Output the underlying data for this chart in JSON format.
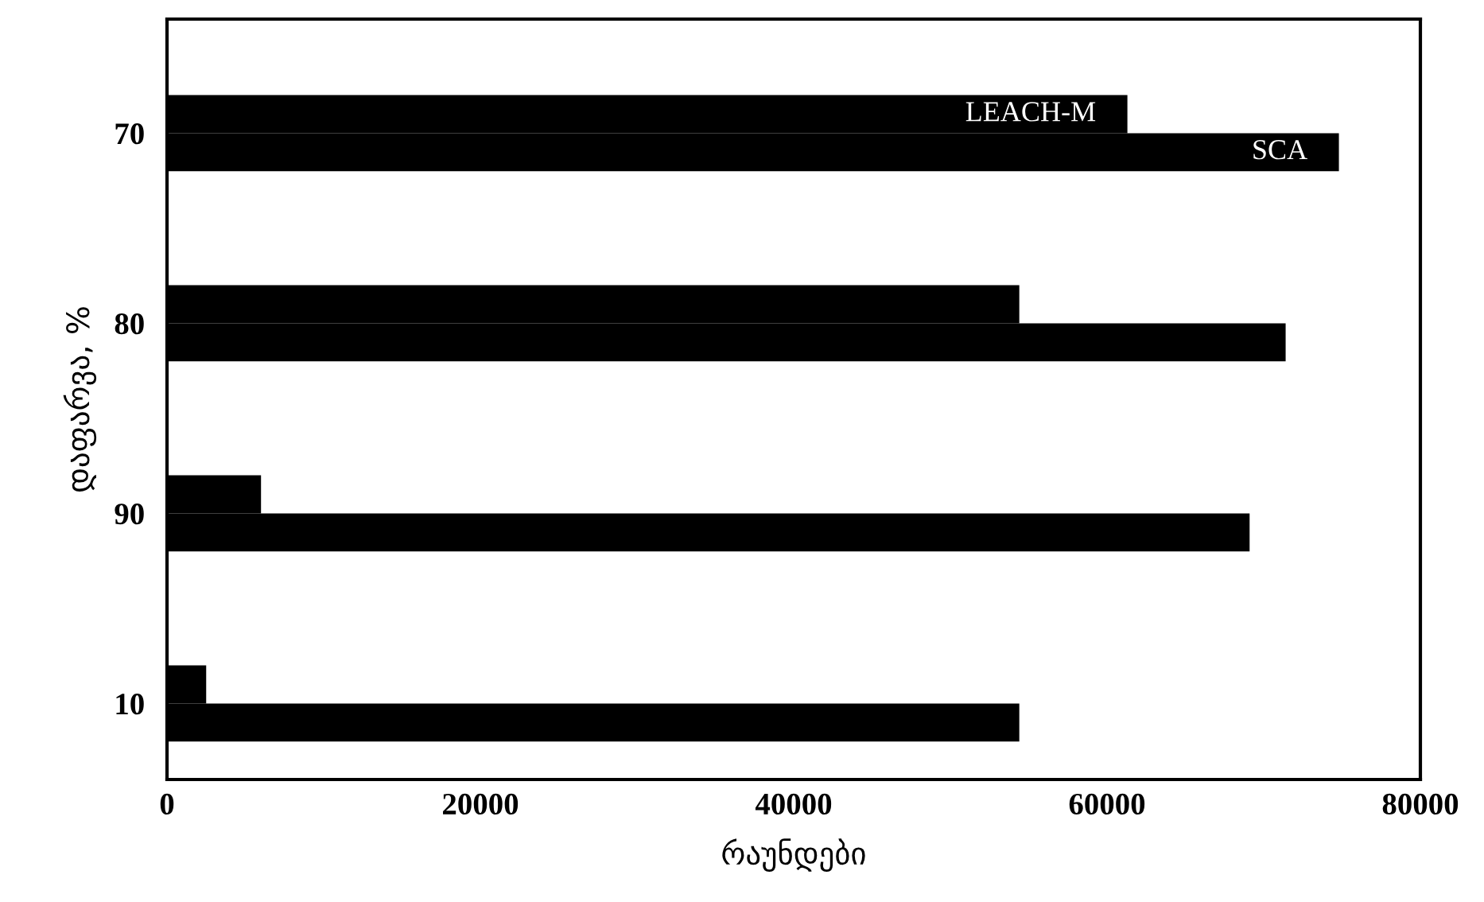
{
  "chart_data": {
    "type": "bar",
    "orientation": "horizontal",
    "xlabel": "რაუნდები",
    "ylabel": "დაფარვა, %",
    "categories": [
      "70",
      "80",
      "90",
      "10"
    ],
    "series": [
      {
        "name": "LEACH-M",
        "color": "#000000",
        "values": [
          61300,
          54400,
          6000,
          2500
        ]
      },
      {
        "name": "SCA",
        "color": "#000000",
        "values": [
          74800,
          71400,
          69100,
          54400
        ]
      }
    ],
    "xlim": [
      0,
      80000
    ],
    "xticks": [
      0,
      20000,
      40000,
      60000,
      80000
    ],
    "grid": false,
    "legend": false
  }
}
